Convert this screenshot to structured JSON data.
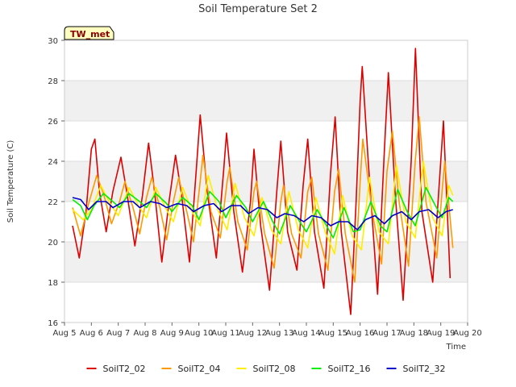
{
  "chart_data": {
    "type": "line",
    "title": "Soil Temperature Set 2",
    "xlabel": "Time",
    "ylabel": "Soil Temperature (C)",
    "ylim": [
      16,
      30
    ],
    "xlim": [
      5,
      20
    ],
    "x_ticks": [
      "Aug 5",
      "Aug 6",
      "Aug 7",
      "Aug 8",
      "Aug 9",
      "Aug 10",
      "Aug 11",
      "Aug 12",
      "Aug 13",
      "Aug 14",
      "Aug 15",
      "Aug 16",
      "Aug 17",
      "Aug 18",
      "Aug 19",
      "Aug 20"
    ],
    "y_ticks": [
      16,
      18,
      20,
      22,
      24,
      26,
      28,
      30
    ],
    "grid": "horizontal bands",
    "badge": "TW_met",
    "legend_position": "bottom",
    "x_units": "day of August",
    "series": [
      {
        "name": "SoilT2_02",
        "color": "#dd0000",
        "points": [
          [
            5.3,
            20.8
          ],
          [
            5.55,
            19.2
          ],
          [
            5.8,
            21.5
          ],
          [
            6.0,
            24.6
          ],
          [
            6.13,
            25.1
          ],
          [
            6.3,
            22.5
          ],
          [
            6.55,
            20.5
          ],
          [
            6.8,
            22.5
          ],
          [
            7.1,
            24.2
          ],
          [
            7.3,
            22.6
          ],
          [
            7.62,
            19.8
          ],
          [
            7.9,
            22.3
          ],
          [
            8.13,
            24.9
          ],
          [
            8.35,
            22.5
          ],
          [
            8.62,
            19.0
          ],
          [
            8.9,
            22.1
          ],
          [
            9.13,
            24.3
          ],
          [
            9.35,
            22.4
          ],
          [
            9.65,
            19.0
          ],
          [
            9.9,
            23.5
          ],
          [
            10.05,
            26.3
          ],
          [
            10.3,
            22.6
          ],
          [
            10.65,
            19.2
          ],
          [
            10.92,
            23.5
          ],
          [
            11.03,
            25.4
          ],
          [
            11.3,
            21.5
          ],
          [
            11.62,
            18.5
          ],
          [
            11.92,
            22.0
          ],
          [
            12.05,
            24.6
          ],
          [
            12.3,
            20.8
          ],
          [
            12.63,
            17.6
          ],
          [
            12.9,
            22.5
          ],
          [
            13.05,
            25.0
          ],
          [
            13.3,
            20.5
          ],
          [
            13.65,
            18.6
          ],
          [
            13.88,
            22.8
          ],
          [
            14.05,
            25.1
          ],
          [
            14.3,
            20.5
          ],
          [
            14.65,
            17.7
          ],
          [
            14.9,
            23.4
          ],
          [
            15.07,
            26.2
          ],
          [
            15.3,
            20.5
          ],
          [
            15.65,
            16.4
          ],
          [
            15.85,
            22.0
          ],
          [
            16.0,
            27.0
          ],
          [
            16.08,
            28.7
          ],
          [
            16.3,
            24.0
          ],
          [
            16.65,
            17.4
          ],
          [
            16.9,
            24.5
          ],
          [
            17.05,
            28.4
          ],
          [
            17.3,
            22.5
          ],
          [
            17.6,
            17.1
          ],
          [
            17.9,
            24.0
          ],
          [
            18.06,
            29.6
          ],
          [
            18.3,
            21.5
          ],
          [
            18.7,
            18.0
          ],
          [
            18.95,
            23.0
          ],
          [
            19.1,
            26.0
          ],
          [
            19.35,
            18.2
          ]
        ]
      },
      {
        "name": "SoilT2_04",
        "color": "#ff9900",
        "points": [
          [
            5.3,
            21.7
          ],
          [
            5.6,
            20.3
          ],
          [
            5.9,
            21.9
          ],
          [
            6.2,
            23.3
          ],
          [
            6.45,
            22.4
          ],
          [
            6.75,
            20.9
          ],
          [
            7.05,
            22.0
          ],
          [
            7.25,
            23.0
          ],
          [
            7.55,
            21.7
          ],
          [
            7.8,
            20.4
          ],
          [
            8.05,
            22.2
          ],
          [
            8.25,
            23.2
          ],
          [
            8.55,
            21.7
          ],
          [
            8.8,
            20.1
          ],
          [
            9.05,
            22.0
          ],
          [
            9.25,
            23.2
          ],
          [
            9.55,
            21.5
          ],
          [
            9.8,
            20.0
          ],
          [
            10.05,
            23.0
          ],
          [
            10.15,
            24.3
          ],
          [
            10.45,
            21.5
          ],
          [
            10.8,
            20.2
          ],
          [
            11.05,
            23.0
          ],
          [
            11.15,
            23.7
          ],
          [
            11.45,
            21.0
          ],
          [
            11.8,
            19.6
          ],
          [
            12.05,
            22.5
          ],
          [
            12.15,
            23.0
          ],
          [
            12.45,
            20.4
          ],
          [
            12.8,
            18.7
          ],
          [
            13.05,
            22.0
          ],
          [
            13.15,
            22.8
          ],
          [
            13.45,
            20.4
          ],
          [
            13.8,
            19.2
          ],
          [
            14.05,
            22.5
          ],
          [
            14.2,
            23.2
          ],
          [
            14.45,
            20.4
          ],
          [
            14.8,
            18.6
          ],
          [
            15.05,
            22.5
          ],
          [
            15.2,
            23.6
          ],
          [
            15.45,
            20.4
          ],
          [
            15.8,
            18.0
          ],
          [
            16.0,
            23.0
          ],
          [
            16.1,
            25.1
          ],
          [
            16.45,
            21.5
          ],
          [
            16.8,
            18.9
          ],
          [
            17.0,
            23.5
          ],
          [
            17.2,
            25.5
          ],
          [
            17.45,
            22.0
          ],
          [
            17.8,
            18.8
          ],
          [
            18.05,
            24.0
          ],
          [
            18.2,
            26.2
          ],
          [
            18.45,
            22.0
          ],
          [
            18.85,
            19.2
          ],
          [
            19.05,
            22.5
          ],
          [
            19.15,
            24.0
          ],
          [
            19.45,
            19.7
          ]
        ]
      },
      {
        "name": "SoilT2_08",
        "color": "#ffee00",
        "points": [
          [
            5.3,
            21.6
          ],
          [
            5.7,
            21.1
          ],
          [
            6.0,
            21.6
          ],
          [
            6.35,
            22.8
          ],
          [
            6.7,
            21.9
          ],
          [
            7.0,
            21.3
          ],
          [
            7.4,
            22.7
          ],
          [
            7.75,
            21.8
          ],
          [
            8.05,
            21.2
          ],
          [
            8.4,
            22.7
          ],
          [
            8.75,
            21.7
          ],
          [
            9.05,
            21.0
          ],
          [
            9.4,
            22.7
          ],
          [
            9.75,
            21.5
          ],
          [
            10.05,
            20.8
          ],
          [
            10.35,
            23.3
          ],
          [
            10.7,
            21.6
          ],
          [
            11.05,
            20.6
          ],
          [
            11.35,
            22.9
          ],
          [
            11.7,
            21.2
          ],
          [
            12.05,
            20.3
          ],
          [
            12.35,
            22.2
          ],
          [
            12.7,
            20.6
          ],
          [
            13.05,
            19.9
          ],
          [
            13.35,
            22.5
          ],
          [
            13.7,
            20.6
          ],
          [
            14.05,
            19.7
          ],
          [
            14.35,
            22.2
          ],
          [
            14.7,
            20.5
          ],
          [
            15.05,
            19.4
          ],
          [
            15.35,
            22.3
          ],
          [
            15.7,
            20.3
          ],
          [
            16.05,
            19.6
          ],
          [
            16.35,
            23.2
          ],
          [
            16.7,
            20.5
          ],
          [
            17.05,
            19.9
          ],
          [
            17.35,
            23.8
          ],
          [
            17.7,
            21.0
          ],
          [
            18.05,
            20.2
          ],
          [
            18.35,
            24.0
          ],
          [
            18.7,
            21.2
          ],
          [
            19.05,
            20.3
          ],
          [
            19.3,
            22.8
          ],
          [
            19.45,
            22.3
          ]
        ]
      },
      {
        "name": "SoilT2_16",
        "color": "#00ee00",
        "points": [
          [
            5.3,
            22.1
          ],
          [
            5.6,
            21.8
          ],
          [
            5.85,
            21.1
          ],
          [
            6.1,
            21.8
          ],
          [
            6.45,
            22.4
          ],
          [
            6.8,
            22.0
          ],
          [
            7.05,
            21.7
          ],
          [
            7.4,
            22.4
          ],
          [
            7.8,
            22.0
          ],
          [
            8.05,
            21.7
          ],
          [
            8.4,
            22.4
          ],
          [
            8.8,
            21.9
          ],
          [
            9.0,
            21.5
          ],
          [
            9.4,
            22.2
          ],
          [
            9.75,
            21.8
          ],
          [
            10.0,
            21.1
          ],
          [
            10.4,
            22.5
          ],
          [
            10.75,
            22.0
          ],
          [
            11.0,
            21.2
          ],
          [
            11.4,
            22.3
          ],
          [
            11.75,
            21.7
          ],
          [
            12.0,
            21.0
          ],
          [
            12.4,
            22.0
          ],
          [
            12.75,
            21.0
          ],
          [
            13.0,
            20.4
          ],
          [
            13.4,
            21.8
          ],
          [
            13.75,
            21.0
          ],
          [
            14.0,
            20.5
          ],
          [
            14.4,
            21.6
          ],
          [
            14.75,
            20.8
          ],
          [
            15.0,
            20.2
          ],
          [
            15.4,
            21.7
          ],
          [
            15.75,
            20.5
          ],
          [
            16.0,
            20.6
          ],
          [
            16.4,
            22.0
          ],
          [
            16.75,
            20.8
          ],
          [
            17.0,
            20.5
          ],
          [
            17.4,
            22.6
          ],
          [
            17.75,
            21.5
          ],
          [
            18.05,
            20.8
          ],
          [
            18.45,
            22.7
          ],
          [
            18.8,
            21.8
          ],
          [
            19.05,
            21.2
          ],
          [
            19.3,
            22.2
          ],
          [
            19.45,
            22.0
          ]
        ]
      },
      {
        "name": "SoilT2_32",
        "color": "#0000cc",
        "points": [
          [
            5.3,
            22.2
          ],
          [
            5.6,
            22.1
          ],
          [
            5.9,
            21.6
          ],
          [
            6.2,
            22.0
          ],
          [
            6.55,
            22.0
          ],
          [
            6.8,
            21.7
          ],
          [
            7.2,
            22.0
          ],
          [
            7.55,
            22.0
          ],
          [
            7.8,
            21.7
          ],
          [
            8.2,
            22.0
          ],
          [
            8.55,
            21.9
          ],
          [
            8.8,
            21.7
          ],
          [
            9.2,
            21.9
          ],
          [
            9.55,
            21.8
          ],
          [
            9.8,
            21.5
          ],
          [
            10.2,
            21.8
          ],
          [
            10.55,
            21.9
          ],
          [
            10.85,
            21.5
          ],
          [
            11.2,
            21.8
          ],
          [
            11.55,
            21.8
          ],
          [
            11.85,
            21.4
          ],
          [
            12.2,
            21.7
          ],
          [
            12.55,
            21.6
          ],
          [
            12.9,
            21.2
          ],
          [
            13.2,
            21.4
          ],
          [
            13.55,
            21.3
          ],
          [
            13.9,
            21.0
          ],
          [
            14.2,
            21.3
          ],
          [
            14.55,
            21.2
          ],
          [
            14.9,
            20.8
          ],
          [
            15.2,
            21.0
          ],
          [
            15.55,
            21.0
          ],
          [
            15.9,
            20.6
          ],
          [
            16.2,
            21.1
          ],
          [
            16.55,
            21.3
          ],
          [
            16.9,
            20.9
          ],
          [
            17.2,
            21.3
          ],
          [
            17.55,
            21.5
          ],
          [
            17.9,
            21.1
          ],
          [
            18.2,
            21.5
          ],
          [
            18.55,
            21.6
          ],
          [
            18.9,
            21.2
          ],
          [
            19.2,
            21.5
          ],
          [
            19.45,
            21.6
          ]
        ]
      }
    ]
  }
}
